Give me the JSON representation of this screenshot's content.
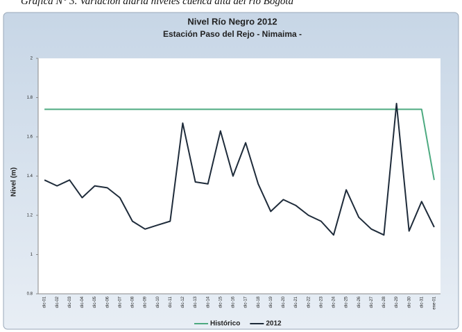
{
  "caption": "Gráfica N° 3. Variación diaria niveles cuenca alta del río Bogotá",
  "chart_data": {
    "type": "line",
    "title": "Nivel Río Negro  2012",
    "subtitle": "Estación Paso del Rejo - Nimaima -",
    "y_label": "Nivel (m)",
    "categories": [
      "dic-01",
      "dic-02",
      "dic-03",
      "dic-04",
      "dic-05",
      "dic-06",
      "dic-07",
      "dic-08",
      "dic-09",
      "dic-10",
      "dic-11",
      "dic-12",
      "dic-13",
      "dic-14",
      "dic-15",
      "dic-16",
      "dic-17",
      "dic-18",
      "dic-19",
      "dic-20",
      "dic-21",
      "dic-22",
      "dic-23",
      "dic-24",
      "dic-25",
      "dic-26",
      "dic-27",
      "dic-28",
      "dic-29",
      "dic-30",
      "dic-31",
      "ene-01"
    ],
    "series": [
      {
        "name": "Histórico",
        "color": "#4daa80",
        "values": [
          1.74,
          1.74,
          1.74,
          1.74,
          1.74,
          1.74,
          1.74,
          1.74,
          1.74,
          1.74,
          1.74,
          1.74,
          1.74,
          1.74,
          1.74,
          1.74,
          1.74,
          1.74,
          1.74,
          1.74,
          1.74,
          1.74,
          1.74,
          1.74,
          1.74,
          1.74,
          1.74,
          1.74,
          1.74,
          1.74,
          1.74,
          1.38
        ]
      },
      {
        "name": "2012",
        "color": "#1e2b3a",
        "values": [
          1.38,
          1.35,
          1.38,
          1.29,
          1.35,
          1.34,
          1.29,
          1.17,
          1.13,
          1.15,
          1.17,
          1.67,
          1.37,
          1.36,
          1.63,
          1.4,
          1.57,
          1.36,
          1.22,
          1.28,
          1.25,
          1.2,
          1.17,
          1.1,
          1.33,
          1.19,
          1.13,
          1.1,
          1.77,
          1.12,
          1.27,
          1.14
        ]
      }
    ],
    "ylim": [
      0.8,
      2
    ],
    "yticks": [
      0.8,
      1,
      1.2,
      1.4,
      1.6,
      1.8,
      2
    ],
    "grid": false,
    "legend": "bottom"
  }
}
